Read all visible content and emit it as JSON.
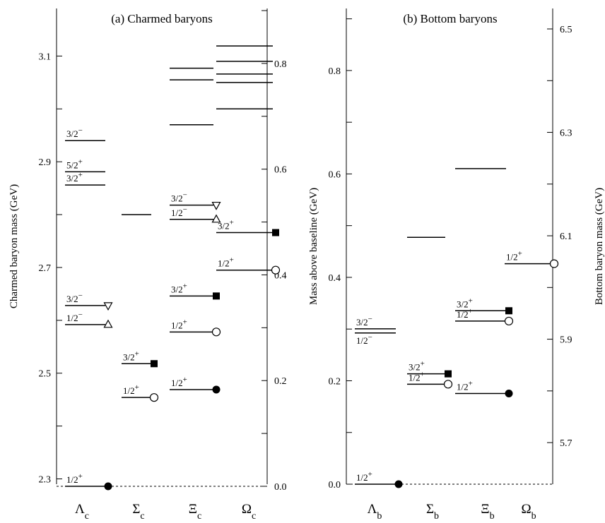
{
  "chart_data": [
    {
      "type": "level-diagram",
      "title": "(a) Charmed baryons",
      "ylabel_left": "Charmed baryon mass  (GeV)",
      "ylabel_right": "Mass above baseline  (GeV)",
      "left_ticks": [
        "2.3",
        "2.5",
        "2.7",
        "2.9",
        "3.1"
      ],
      "left_tick_values": [
        2.3,
        2.5,
        2.7,
        2.9,
        3.1
      ],
      "right_ticks": [
        "0.0",
        "0.2",
        "0.4",
        "0.6",
        "0.8"
      ],
      "right_tick_values": [
        0.0,
        0.2,
        0.4,
        0.6,
        0.8
      ],
      "ylim": [
        2.29,
        3.19
      ],
      "baseline": 2.286,
      "categories": [
        {
          "name": "Λ",
          "sub": "c",
          "levels": [
            {
              "mass": 2.286,
              "jp": "1/2+",
              "marker": "filled-circle"
            },
            {
              "mass": 2.592,
              "jp": "1/2−",
              "marker": "triangle-up"
            },
            {
              "mass": 2.628,
              "jp": "3/2−",
              "marker": "triangle-down"
            },
            {
              "mass": 2.856,
              "jp": "3/2+",
              "marker": ""
            },
            {
              "mass": 2.881,
              "jp": "5/2+",
              "marker": ""
            },
            {
              "mass": 2.94,
              "jp": "3/2−",
              "marker": ""
            }
          ]
        },
        {
          "name": "Σ",
          "sub": "c",
          "levels": [
            {
              "mass": 2.454,
              "jp": "1/2+",
              "marker": "open-circle"
            },
            {
              "mass": 2.518,
              "jp": "3/2+",
              "marker": "filled-square"
            },
            {
              "mass": 2.8,
              "jp": "",
              "marker": ""
            }
          ]
        },
        {
          "name": "Ξ",
          "sub": "c",
          "levels": [
            {
              "mass": 2.469,
              "jp": "1/2+",
              "marker": "filled-circle"
            },
            {
              "mass": 2.578,
              "jp": "1/2+",
              "marker": "open-circle"
            },
            {
              "mass": 2.646,
              "jp": "3/2+",
              "marker": "filled-square"
            },
            {
              "mass": 2.791,
              "jp": "1/2−",
              "marker": "triangle-up"
            },
            {
              "mass": 2.818,
              "jp": "3/2−",
              "marker": "triangle-down"
            },
            {
              "mass": 2.97,
              "jp": "",
              "marker": ""
            },
            {
              "mass": 3.055,
              "jp": "",
              "marker": ""
            },
            {
              "mass": 3.077,
              "jp": "",
              "marker": ""
            }
          ]
        },
        {
          "name": "Ω",
          "sub": "c",
          "levels": [
            {
              "mass": 2.695,
              "jp": "1/2+",
              "marker": "open-circle"
            },
            {
              "mass": 2.766,
              "jp": "3/2+",
              "marker": "filled-square"
            },
            {
              "mass": 3.0,
              "jp": "",
              "marker": ""
            },
            {
              "mass": 3.05,
              "jp": "",
              "marker": ""
            },
            {
              "mass": 3.066,
              "jp": "",
              "marker": ""
            },
            {
              "mass": 3.09,
              "jp": "",
              "marker": ""
            },
            {
              "mass": 3.119,
              "jp": "",
              "marker": ""
            }
          ]
        }
      ]
    },
    {
      "type": "level-diagram",
      "title": "(b) Bottom baryons",
      "ylabel_left": "",
      "ylabel_right": "Bottom baryon mass  (GeV)",
      "left_ticks": [
        "0.0",
        "0.2",
        "0.4",
        "0.6",
        "0.8"
      ],
      "left_tick_values": [
        0.0,
        0.2,
        0.4,
        0.6,
        0.8
      ],
      "right_ticks": [
        "5.7",
        "5.9",
        "6.1",
        "6.3",
        "6.5"
      ],
      "right_tick_values": [
        5.7,
        5.9,
        6.1,
        6.3,
        6.5
      ],
      "ylim": [
        5.6196,
        6.5396
      ],
      "baseline": 5.6196,
      "categories": [
        {
          "name": "Λ",
          "sub": "b",
          "levels": [
            {
              "mass": 5.6196,
              "jp": "1/2+",
              "marker": "filled-circle"
            },
            {
              "mass": 5.912,
              "jp": "1/2−",
              "marker": ""
            },
            {
              "mass": 5.92,
              "jp": "3/2−",
              "marker": ""
            }
          ]
        },
        {
          "name": "Σ",
          "sub": "b",
          "levels": [
            {
              "mass": 5.813,
              "jp": "1/2+",
              "marker": "open-circle"
            },
            {
              "mass": 5.833,
              "jp": "3/2+",
              "marker": "filled-square"
            },
            {
              "mass": 6.097,
              "jp": "",
              "marker": ""
            }
          ]
        },
        {
          "name": "Ξ",
          "sub": "b",
          "levels": [
            {
              "mass": 5.795,
              "jp": "1/2+",
              "marker": "filled-circle"
            },
            {
              "mass": 5.935,
              "jp": "1/2+",
              "marker": "open-circle"
            },
            {
              "mass": 5.955,
              "jp": "3/2+",
              "marker": "filled-square"
            },
            {
              "mass": 6.23,
              "jp": "",
              "marker": ""
            }
          ]
        },
        {
          "name": "Ω",
          "sub": "b",
          "levels": [
            {
              "mass": 6.046,
              "jp": "1/2+",
              "marker": "open-circle"
            }
          ]
        }
      ]
    }
  ]
}
